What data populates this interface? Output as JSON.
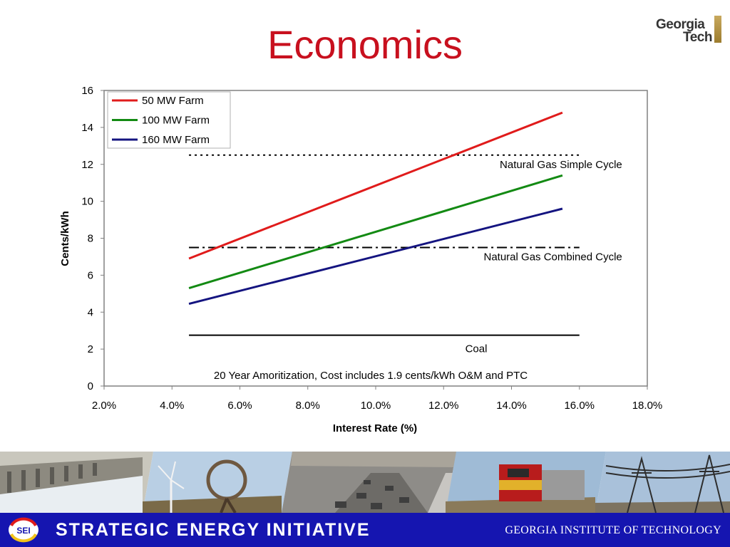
{
  "slide": {
    "title": "Economics",
    "logo_text": [
      "Georgia",
      "Tech"
    ]
  },
  "chart_data": {
    "type": "line",
    "xlabel": "Interest Rate (%)",
    "ylabel": "Cents/kWh",
    "xlim": [
      0.02,
      0.18
    ],
    "ylim": [
      0,
      16
    ],
    "x_ticks": [
      "2.0%",
      "4.0%",
      "6.0%",
      "8.0%",
      "10.0%",
      "12.0%",
      "14.0%",
      "16.0%",
      "18.0%"
    ],
    "y_ticks": [
      "0",
      "2",
      "4",
      "6",
      "8",
      "10",
      "12",
      "14",
      "16"
    ],
    "grid": false,
    "legend_position": "top-left",
    "series": [
      {
        "name": "50 MW Farm",
        "color": "#e01b1b",
        "x": [
          0.045,
          0.155
        ],
        "y": [
          6.9,
          14.8
        ]
      },
      {
        "name": "100 MW Farm",
        "color": "#138a13",
        "x": [
          0.045,
          0.155
        ],
        "y": [
          5.3,
          11.4
        ]
      },
      {
        "name": "160 MW Farm",
        "color": "#141480",
        "x": [
          0.045,
          0.155
        ],
        "y": [
          4.45,
          9.6
        ]
      }
    ],
    "reference_lines": [
      {
        "label": "Natural Gas Simple Cycle",
        "y": 12.5,
        "x_range": [
          0.045,
          0.16
        ],
        "style": "dotted",
        "color": "#000000"
      },
      {
        "label": "Natural Gas Combined Cycle",
        "y": 7.5,
        "x_range": [
          0.045,
          0.16
        ],
        "style": "dash-dot",
        "color": "#000000"
      },
      {
        "label": "Coal",
        "y": 2.75,
        "x_range": [
          0.045,
          0.16
        ],
        "style": "solid",
        "color": "#000000"
      }
    ],
    "annotations": [
      {
        "text": "20 Year Amoritization, Cost includes 1.9 cents/kWh O&M and PTC"
      }
    ]
  },
  "footer": {
    "badge_text": "SEI",
    "left_text": "STRATEGIC ENERGY INITIATIVE",
    "right_text": "GEORGIA INSTITUTE OF TECHNOLOGY",
    "color": "#1515b0"
  },
  "photo_strip": {
    "photos": [
      "dam",
      "windmills",
      "highway-traffic",
      "locomotive",
      "power-lines"
    ]
  }
}
